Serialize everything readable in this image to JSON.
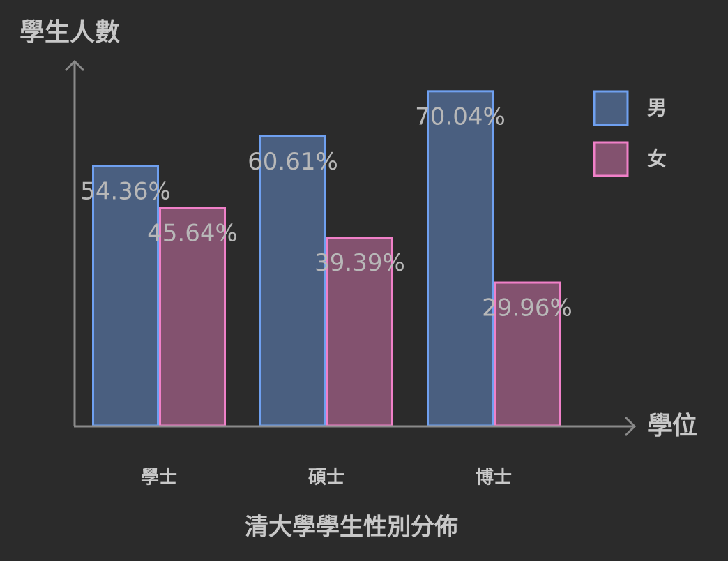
{
  "chart_data": {
    "type": "bar",
    "title": "清大學學生性別分佈",
    "y_label": "學生人數",
    "x_label": "學位",
    "categories": [
      "學士",
      "碩士",
      "博士"
    ],
    "series": [
      {
        "name": "男",
        "color": "#6fa0f0",
        "fill": "#4a5f80",
        "values": [
          54.36,
          60.61,
          70.04
        ],
        "value_labels": [
          "54.36%",
          "60.61%",
          "70.04%"
        ]
      },
      {
        "name": "女",
        "color": "#f080c8",
        "fill": "#83526f",
        "values": [
          45.64,
          39.39,
          29.96
        ],
        "value_labels": [
          "45.64%",
          "39.39%",
          "29.96%"
        ]
      }
    ],
    "ylim": [
      0,
      76.3
    ],
    "legend": "upper right"
  }
}
